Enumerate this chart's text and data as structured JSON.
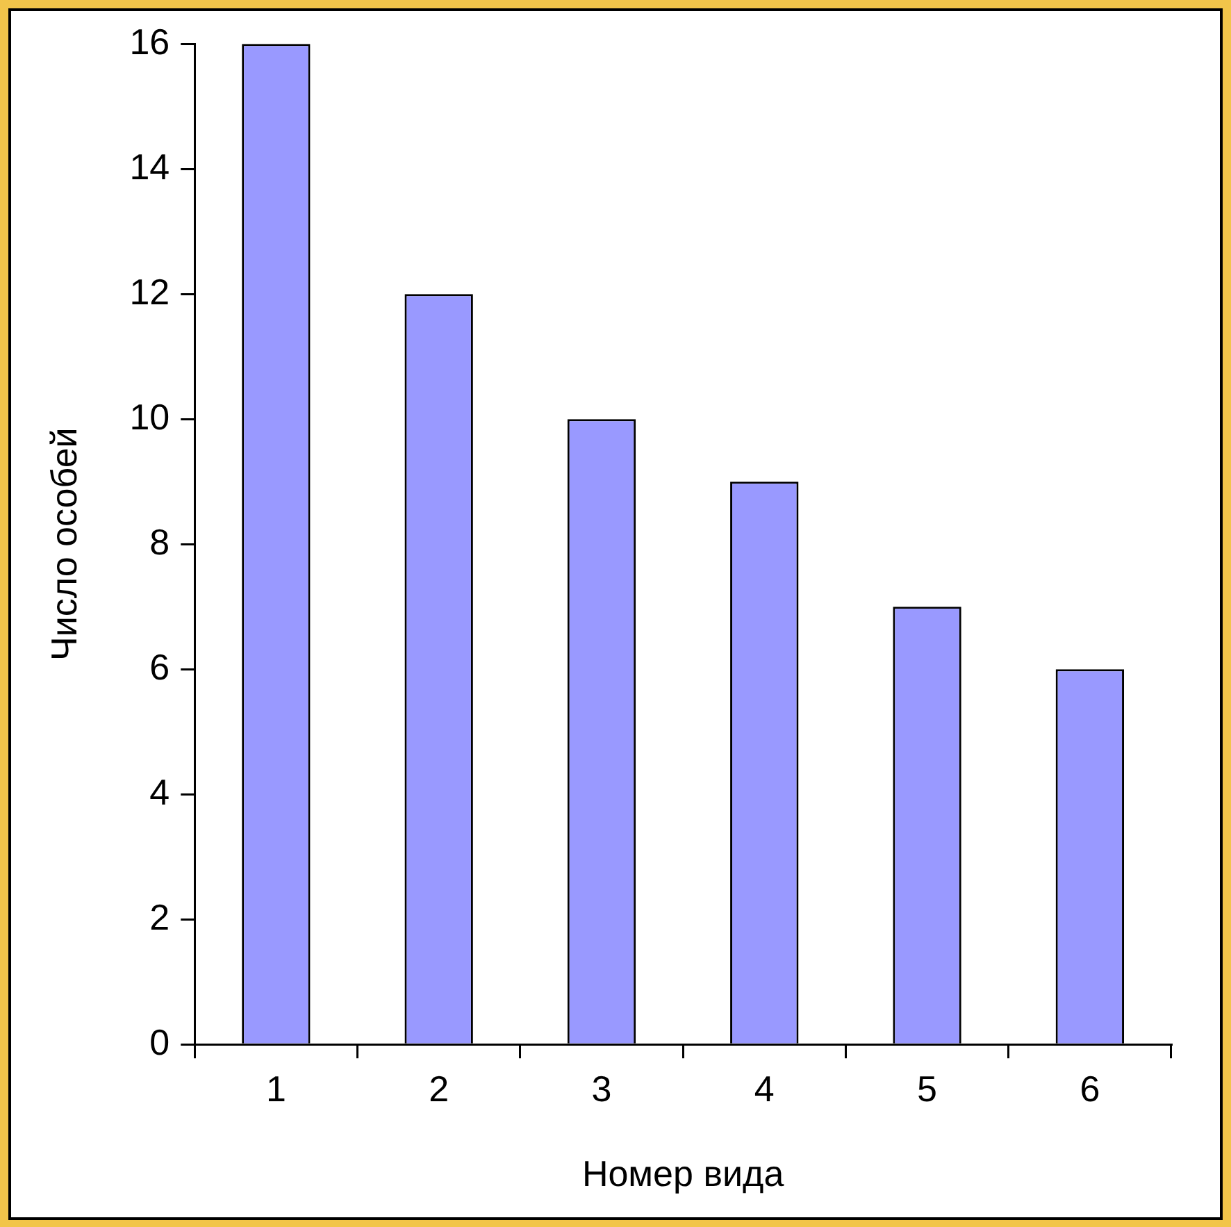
{
  "chart_data": {
    "type": "bar",
    "xlabel": "Номер вида",
    "ylabel": "Число особей",
    "categories": [
      "1",
      "2",
      "3",
      "4",
      "5",
      "6"
    ],
    "values": [
      16,
      12,
      10,
      9,
      7,
      6
    ],
    "color": "#9999ff",
    "ylim": [
      0,
      16
    ],
    "yticks": [
      0,
      2,
      4,
      6,
      8,
      10,
      12,
      14,
      16
    ],
    "grid": false,
    "legend": false
  }
}
